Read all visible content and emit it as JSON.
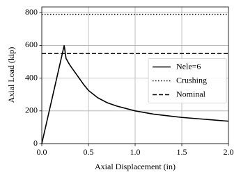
{
  "chart_data": {
    "type": "line",
    "xlabel": "Axial Displacement (in)",
    "ylabel": "Axial Load (kip)",
    "xlim": [
      0,
      2
    ],
    "ylim": [
      0,
      835
    ],
    "xticks": [
      {
        "value": 0,
        "label": "0.0"
      },
      {
        "value": 0.5,
        "label": "0.5"
      },
      {
        "value": 1,
        "label": "1.0"
      },
      {
        "value": 1.5,
        "label": "1.5"
      },
      {
        "value": 2,
        "label": "2.0"
      }
    ],
    "yticks": [
      0,
      200,
      400,
      600,
      800
    ],
    "grid": true,
    "legend": "center right",
    "series": [
      {
        "name": "Nele=6",
        "color": "#000000",
        "style": "solid",
        "x": [
          0,
          0.24,
          0.26,
          0.3,
          0.35,
          0.4,
          0.45,
          0.5,
          0.6,
          0.7,
          0.8,
          1.0,
          1.2,
          1.5,
          2.0
        ],
        "values": [
          0,
          600,
          520,
          480,
          440,
          400,
          360,
          325,
          280,
          250,
          230,
          200,
          180,
          160,
          137
        ]
      },
      {
        "name": "Crushing",
        "color": "#000000",
        "style": "dotted",
        "x": [
          0,
          2
        ],
        "values": [
          790,
          790
        ]
      },
      {
        "name": "Nominal",
        "color": "#000000",
        "style": "dashed",
        "x": [
          0,
          2
        ],
        "values": [
          550,
          550
        ]
      }
    ]
  }
}
